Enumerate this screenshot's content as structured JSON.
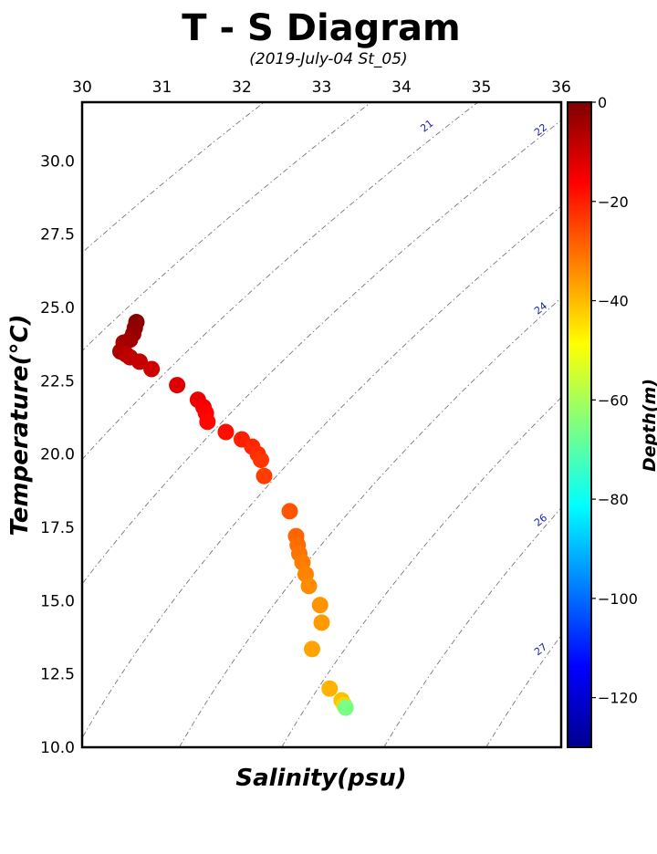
{
  "chart_data": {
    "type": "scatter",
    "title": "T - S Diagram",
    "subtitle": "(2019-July-04 St_05)",
    "xlabel": "Salinity(psu)",
    "ylabel": "Temperature(°C)",
    "xlim": [
      30,
      36
    ],
    "ylim": [
      10,
      32
    ],
    "x_ticks": [
      "30",
      "31",
      "32",
      "33",
      "34",
      "35",
      "36"
    ],
    "y_ticks": [
      "10.0",
      "12.5",
      "15.0",
      "17.5",
      "20.0",
      "22.5",
      "25.0",
      "27.5",
      "30.0"
    ],
    "x_tick_position": "top",
    "grid": false,
    "colorbar": {
      "label": "Depth(m)",
      "colormap": "jet",
      "range": [
        -130,
        0
      ],
      "ticks": [
        "0",
        "−20",
        "−40",
        "−60",
        "−80",
        "−100",
        "−120"
      ]
    },
    "isopycnals": {
      "levels": [
        19,
        20,
        21,
        22,
        23,
        24,
        25,
        26,
        27
      ],
      "labels": [
        "21",
        "22",
        "24",
        "26",
        "27"
      ],
      "style": "dash-dot",
      "color": "#777777"
    },
    "points": [
      {
        "salinity": 30.68,
        "temperature": 24.5,
        "depth": -1
      },
      {
        "salinity": 30.66,
        "temperature": 24.3,
        "depth": -2
      },
      {
        "salinity": 30.64,
        "temperature": 24.1,
        "depth": -3
      },
      {
        "salinity": 30.6,
        "temperature": 23.9,
        "depth": -4
      },
      {
        "salinity": 30.52,
        "temperature": 23.8,
        "depth": -5
      },
      {
        "salinity": 30.48,
        "temperature": 23.5,
        "depth": -6
      },
      {
        "salinity": 30.55,
        "temperature": 23.4,
        "depth": -7
      },
      {
        "salinity": 30.6,
        "temperature": 23.3,
        "depth": -8
      },
      {
        "salinity": 30.72,
        "temperature": 23.15,
        "depth": -9
      },
      {
        "salinity": 30.87,
        "temperature": 22.9,
        "depth": -10
      },
      {
        "salinity": 31.19,
        "temperature": 22.35,
        "depth": -12
      },
      {
        "salinity": 31.45,
        "temperature": 21.85,
        "depth": -14
      },
      {
        "salinity": 31.52,
        "temperature": 21.6,
        "depth": -15
      },
      {
        "salinity": 31.55,
        "temperature": 21.4,
        "depth": -16
      },
      {
        "salinity": 31.57,
        "temperature": 21.1,
        "depth": -17
      },
      {
        "salinity": 31.8,
        "temperature": 20.75,
        "depth": -18
      },
      {
        "salinity": 32.0,
        "temperature": 20.5,
        "depth": -20
      },
      {
        "salinity": 32.13,
        "temperature": 20.25,
        "depth": -21
      },
      {
        "salinity": 32.2,
        "temperature": 20.0,
        "depth": -22
      },
      {
        "salinity": 32.24,
        "temperature": 19.8,
        "depth": -23
      },
      {
        "salinity": 32.28,
        "temperature": 19.25,
        "depth": -24
      },
      {
        "salinity": 32.6,
        "temperature": 18.05,
        "depth": -27
      },
      {
        "salinity": 32.68,
        "temperature": 17.2,
        "depth": -29
      },
      {
        "salinity": 32.7,
        "temperature": 16.9,
        "depth": -30
      },
      {
        "salinity": 32.72,
        "temperature": 16.6,
        "depth": -31
      },
      {
        "salinity": 32.76,
        "temperature": 16.3,
        "depth": -32
      },
      {
        "salinity": 32.8,
        "temperature": 15.9,
        "depth": -33
      },
      {
        "salinity": 32.84,
        "temperature": 15.5,
        "depth": -34
      },
      {
        "salinity": 32.98,
        "temperature": 14.85,
        "depth": -35
      },
      {
        "salinity": 33.0,
        "temperature": 14.25,
        "depth": -36
      },
      {
        "salinity": 32.88,
        "temperature": 13.35,
        "depth": -37
      },
      {
        "salinity": 33.1,
        "temperature": 12.0,
        "depth": -39
      },
      {
        "salinity": 33.25,
        "temperature": 11.6,
        "depth": -41
      },
      {
        "salinity": 33.28,
        "temperature": 11.45,
        "depth": -43
      },
      {
        "salinity": 33.3,
        "temperature": 11.35,
        "depth": -66
      }
    ]
  }
}
